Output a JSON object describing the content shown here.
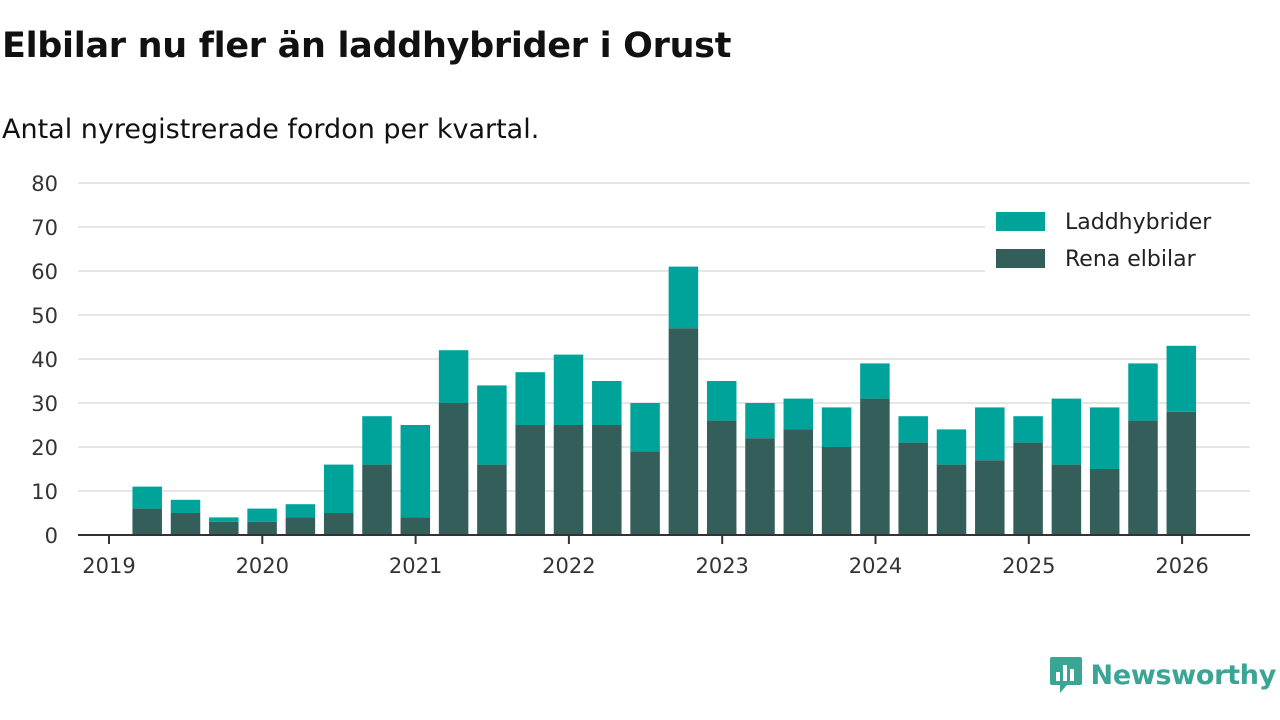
{
  "title": "Elbilar nu fler än laddhybrider i Orust",
  "subtitle": "Antal nyregistrerade fordon per kvartal.",
  "brand": {
    "name": "Newsworthy",
    "icon": "bar-chart-icon",
    "color": "#3aa495"
  },
  "colors": {
    "laddhybrider": "#00a39a",
    "elbilar": "#335e5a",
    "grid": "#dddddd",
    "axis": "#333333"
  },
  "chart_data": {
    "type": "bar",
    "stacked": true,
    "title": "Elbilar nu fler än laddhybrider i Orust",
    "subtitle": "Antal nyregistrerade fordon per kvartal.",
    "xlabel": "",
    "ylabel": "",
    "ylim": [
      0,
      80
    ],
    "yticks": [
      0,
      10,
      20,
      30,
      40,
      50,
      60,
      70,
      80
    ],
    "xticks": [
      "2019",
      "2020",
      "2021",
      "2022",
      "2023",
      "2024",
      "2025",
      "2026"
    ],
    "legend_position": "top-right",
    "grid": true,
    "categories": [
      "2019 Q2",
      "2019 Q3",
      "2019 Q4",
      "2020 Q1",
      "2020 Q2",
      "2020 Q3",
      "2020 Q4",
      "2021 Q1",
      "2021 Q2",
      "2021 Q3",
      "2021 Q4",
      "2022 Q1",
      "2022 Q2",
      "2022 Q3",
      "2022 Q4",
      "2023 Q1",
      "2023 Q2",
      "2023 Q3",
      "2023 Q4",
      "2024 Q1",
      "2024 Q2",
      "2024 Q3",
      "2024 Q4",
      "2025 Q1",
      "2025 Q2",
      "2025 Q3",
      "2025 Q4",
      "2026 Q1"
    ],
    "series": [
      {
        "name": "Rena elbilar",
        "color": "#335e5a",
        "values": [
          6,
          5,
          3,
          3,
          4,
          5,
          16,
          4,
          30,
          16,
          25,
          25,
          25,
          19,
          47,
          26,
          22,
          24,
          20,
          31,
          21,
          16,
          17,
          21,
          16,
          15,
          26,
          28
        ]
      },
      {
        "name": "Laddhybrider",
        "color": "#00a39a",
        "values": [
          5,
          3,
          1,
          3,
          3,
          11,
          11,
          21,
          12,
          18,
          12,
          16,
          10,
          11,
          14,
          9,
          8,
          7,
          9,
          8,
          6,
          8,
          12,
          6,
          15,
          14,
          13,
          15
        ]
      }
    ],
    "legend": [
      "Laddhybrider",
      "Rena elbilar"
    ]
  }
}
